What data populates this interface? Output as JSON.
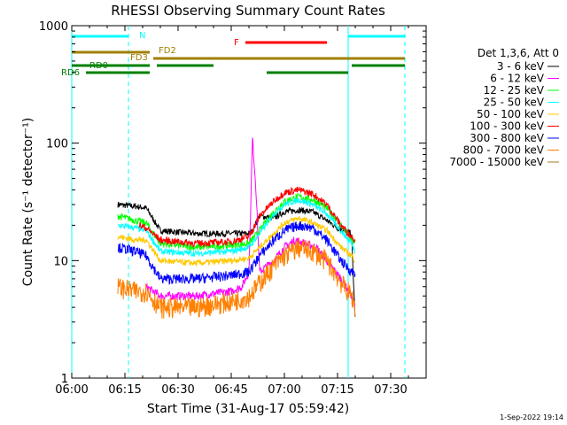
{
  "chart_data": {
    "type": "line",
    "title": "RHESSI Observing Summary Count Rates",
    "xlabel": "Start Time (31-Aug-17 05:59:42)",
    "ylabel": "Count Rate (s⁻¹ detector⁻¹)",
    "yscale": "log",
    "xlim": [
      "06:00",
      "07:40"
    ],
    "ylim": [
      1,
      1000
    ],
    "x_ticks": [
      "06:00",
      "06:15",
      "06:30",
      "06:45",
      "07:00",
      "07:15",
      "07:30"
    ],
    "y_ticks": [
      "1",
      "10",
      "100",
      "1000"
    ],
    "grid": false,
    "legend_position": "right",
    "legend_title": "Det 1,3,6, Att 0",
    "timestamp": "1-Sep-2022 19:14",
    "series": [
      {
        "name": "3 - 6 keV",
        "color": "#000000",
        "x": [
          "06:13",
          "06:18",
          "06:21",
          "06:25",
          "06:35",
          "06:45",
          "06:50",
          "06:51",
          "06:53",
          "06:57",
          "07:00",
          "07:04",
          "07:08",
          "07:12",
          "07:15",
          "07:19",
          "07:19",
          "07:20"
        ],
        "y": [
          30,
          29,
          28,
          18,
          17,
          17,
          17,
          18,
          24,
          23,
          26,
          27,
          26,
          22,
          19,
          17,
          15,
          3
        ]
      },
      {
        "name": "6 - 12 keV",
        "color": "#ff00ff",
        "x": [
          "06:21",
          "06:25",
          "06:35",
          "06:45",
          "06:48",
          "06:50",
          "06:51",
          "06:52",
          "06:53",
          "06:57",
          "07:00",
          "07:03",
          "07:06",
          "07:09",
          "07:12",
          "07:16",
          "07:19",
          "07:20"
        ],
        "y": [
          6,
          5,
          5,
          5.5,
          6,
          8,
          110,
          40,
          8,
          10,
          13,
          15,
          14,
          13,
          10,
          7,
          5,
          4
        ]
      },
      {
        "name": "12 - 25 keV",
        "color": "#00ff00",
        "x": [
          "06:13",
          "06:18",
          "06:21",
          "06:25",
          "06:35",
          "06:45",
          "06:50",
          "06:53",
          "06:57",
          "07:00",
          "07:04",
          "07:08",
          "07:12",
          "07:16",
          "07:19",
          "07:20"
        ],
        "y": [
          24,
          22,
          21,
          14,
          13,
          13.5,
          14,
          18,
          26,
          32,
          35,
          33,
          28,
          20,
          15,
          14
        ]
      },
      {
        "name": "25 - 50 keV",
        "color": "#00ffff",
        "x": [
          "06:13",
          "06:18",
          "06:21",
          "06:25",
          "06:35",
          "06:45",
          "06:50",
          "06:53",
          "06:57",
          "07:00",
          "07:04",
          "07:08",
          "07:12",
          "07:16",
          "07:19",
          "07:20"
        ],
        "y": [
          20,
          19,
          18,
          12,
          11.5,
          12,
          13,
          17,
          25,
          30,
          33,
          30,
          25,
          18,
          14,
          12
        ]
      },
      {
        "name": "50 - 100 keV",
        "color": "#ffc800",
        "x": [
          "06:13",
          "06:18",
          "06:21",
          "06:25",
          "06:35",
          "06:45",
          "06:50",
          "06:53",
          "06:57",
          "07:00",
          "07:04",
          "07:08",
          "07:12",
          "07:16",
          "07:19",
          "07:20"
        ],
        "y": [
          16,
          15,
          15,
          10,
          9.5,
          10,
          10.5,
          13,
          17,
          21,
          23,
          21,
          18,
          13,
          11,
          10
        ]
      },
      {
        "name": "100 - 300 keV",
        "color": "#ff0000",
        "x": [
          "06:19",
          "06:21",
          "06:25",
          "06:35",
          "06:45",
          "06:50",
          "06:53",
          "06:57",
          "07:00",
          "07:04",
          "07:08",
          "07:12",
          "07:16",
          "07:19",
          "07:20"
        ],
        "y": [
          20,
          19,
          15,
          14,
          14.5,
          16,
          24,
          32,
          38,
          40,
          37,
          30,
          20,
          16,
          15
        ]
      },
      {
        "name": "300 - 800 keV",
        "color": "#0000ff",
        "x": [
          "06:13",
          "06:18",
          "06:21",
          "06:25",
          "06:35",
          "06:45",
          "06:50",
          "06:53",
          "06:57",
          "07:00",
          "07:04",
          "07:08",
          "07:12",
          "07:16",
          "07:19",
          "07:20"
        ],
        "y": [
          13,
          12,
          11,
          7,
          7,
          7.5,
          8,
          11,
          15,
          18,
          20,
          19,
          15,
          10,
          8,
          8
        ]
      },
      {
        "name": "800 - 7000 keV",
        "color": "#ff8000",
        "x": [
          "06:13",
          "06:18",
          "06:21",
          "06:25",
          "06:35",
          "06:45",
          "06:50",
          "06:53",
          "06:57",
          "07:00",
          "07:04",
          "07:08",
          "07:12",
          "07:16",
          "07:19",
          "07:20"
        ],
        "y": [
          6,
          5.5,
          5.5,
          4,
          4,
          4.5,
          5,
          6.5,
          9,
          11,
          13,
          12,
          10,
          6.5,
          5,
          4
        ]
      },
      {
        "name": "7000 - 15000 keV",
        "color": "#a08020",
        "x": [],
        "y": []
      }
    ],
    "attenuator_states": [
      {
        "label": "N",
        "color": "#00ffff",
        "intervals": [
          [
            "06:00",
            "06:16"
          ],
          [
            "07:18",
            "07:34"
          ]
        ]
      },
      {
        "label": "F",
        "color": "#ff0000",
        "intervals": [
          [
            "06:49",
            "07:12"
          ]
        ]
      },
      {
        "label": "FD2",
        "color": "#a08000",
        "intervals": [
          [
            "06:00",
            "06:22"
          ]
        ]
      },
      {
        "label": "FD3",
        "color": "#a08000",
        "intervals": [
          [
            "06:23",
            "07:34"
          ]
        ]
      },
      {
        "label": "RD0",
        "color": "#008000",
        "intervals": [
          [
            "06:00",
            "06:22"
          ],
          [
            "06:24",
            "06:40"
          ],
          [
            "07:19",
            "07:34"
          ]
        ]
      },
      {
        "label": "RD6",
        "color": "#008000",
        "intervals": [
          [
            "06:04",
            "06:22"
          ],
          [
            "06:55",
            "07:18"
          ]
        ]
      }
    ],
    "vertical_markers": [
      {
        "time": "06:00",
        "color": "#00ffff",
        "style": "solid"
      },
      {
        "time": "06:16",
        "color": "#00ffff",
        "style": "dashed"
      },
      {
        "time": "07:18",
        "color": "#00ffff",
        "style": "solid"
      },
      {
        "time": "07:34",
        "color": "#00ffff",
        "style": "dashed"
      }
    ]
  }
}
